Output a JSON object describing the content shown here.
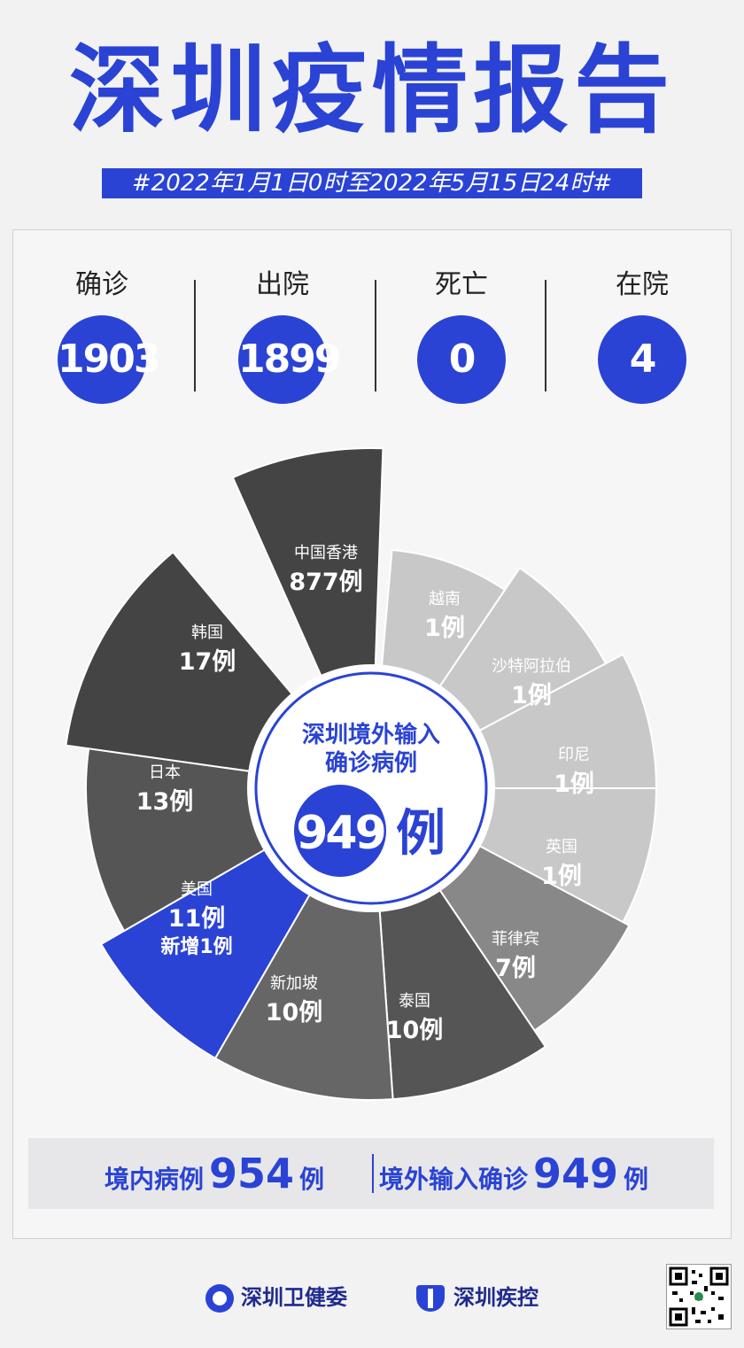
{
  "title": "深圳疫情报告",
  "subtitle": "#2022年1月1日0时至2022年5月15日24时#",
  "stats": [
    {
      "label": "确诊",
      "value": "1903"
    },
    {
      "label": "出院",
      "value": "1899"
    },
    {
      "label": "死亡",
      "value": "0"
    },
    {
      "label": "在院",
      "value": "4"
    }
  ],
  "colors": {
    "accent": "#2a43d4",
    "dark": "#444444",
    "mid": "#666666",
    "light": "#c8c8c8"
  },
  "chart_data": {
    "type": "pie",
    "center": {
      "line1": "深圳境外输入",
      "line2": "确诊病例",
      "value": "949",
      "unit": "例"
    },
    "slices": [
      {
        "name": "中国香港",
        "value_text": "877例",
        "value": 877
      },
      {
        "name": "越南",
        "value_text": "1例",
        "value": 1
      },
      {
        "name": "沙特阿拉伯",
        "value_text": "1例",
        "value": 1
      },
      {
        "name": "印尼",
        "value_text": "1例",
        "value": 1
      },
      {
        "name": "英国",
        "value_text": "1例",
        "value": 1
      },
      {
        "name": "菲律宾",
        "value_text": "7例",
        "value": 7
      },
      {
        "name": "泰国",
        "value_text": "10例",
        "value": 10
      },
      {
        "name": "新加坡",
        "value_text": "10例",
        "value": 10
      },
      {
        "name": "美国",
        "value_text": "11例",
        "extra": "新增1例",
        "value": 11
      },
      {
        "name": "日本",
        "value_text": "13例",
        "value": 13
      },
      {
        "name": "韩国",
        "value_text": "17例",
        "value": 17
      }
    ]
  },
  "summary": {
    "domestic_label": "境内病例",
    "domestic_value": "954",
    "domestic_unit": "例",
    "imported_label": "境外输入确诊",
    "imported_value": "949",
    "imported_unit": "例"
  },
  "footer": {
    "org1": "深圳卫健委",
    "org2": "深圳疾控"
  }
}
